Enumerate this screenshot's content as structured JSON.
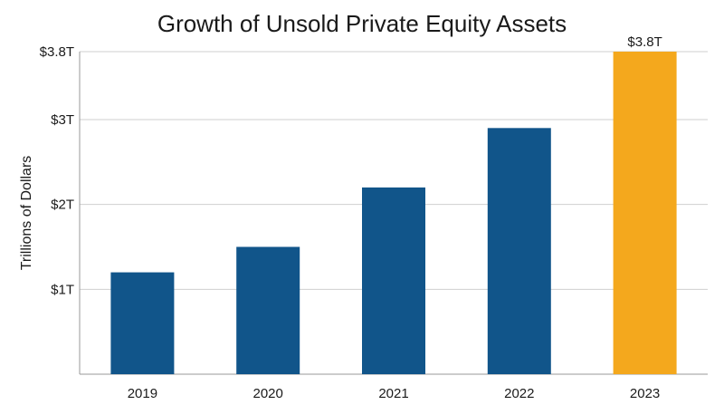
{
  "chart_data": {
    "type": "bar",
    "title": "Growth of Unsold Private Equity Assets",
    "xlabel": "",
    "ylabel": "Trillions of Dollars",
    "categories": [
      "2019",
      "2020",
      "2021",
      "2022",
      "2023"
    ],
    "values": [
      1.2,
      1.5,
      2.2,
      2.9,
      3.8
    ],
    "ylim": [
      0,
      3.8
    ],
    "yticks": [
      1,
      2,
      3,
      3.8
    ],
    "ytick_labels": [
      "$1T",
      "$2T",
      "$3T",
      "$3.8T"
    ],
    "data_labels": [
      {
        "category": "2023",
        "text": "$3.8T"
      }
    ],
    "colors": {
      "default_bar": "#11558A",
      "highlight_bar": "#F4A81D"
    },
    "highlight_category": "2023",
    "grid": true,
    "legend": "none"
  }
}
